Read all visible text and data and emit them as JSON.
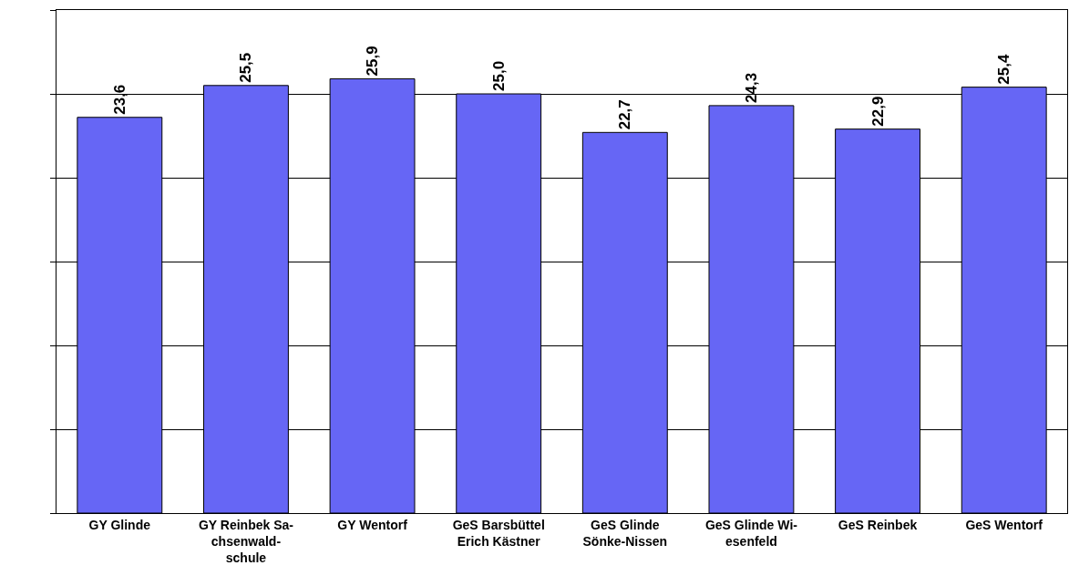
{
  "chart_data": {
    "type": "bar",
    "categories": [
      "GY Glinde",
      "GY Reinbek Sa-\nchsenwald-\nschule",
      "GY Wentorf",
      "GeS Barsbüttel\nErich Kästner",
      "GeS Glinde\nSönke-Nissen",
      "GeS Glinde Wi-\nesenfeld",
      "GeS Reinbek",
      "GeS Wentorf"
    ],
    "values": [
      23.6,
      25.5,
      25.9,
      25.0,
      22.7,
      24.3,
      22.9,
      25.4
    ],
    "value_labels": [
      "23,6",
      "25,5",
      "25,9",
      "25,0",
      "22,7",
      "24,3",
      "22,9",
      "25,4"
    ],
    "color": "#6666f5",
    "ylim": [
      0,
      30
    ],
    "yticks": [
      {
        "value": 0,
        "label": null
      },
      {
        "value": 5,
        "label": null
      },
      {
        "value": 10,
        "label": null
      },
      {
        "value": 15,
        "label": null
      },
      {
        "value": 20,
        "label": null
      },
      {
        "value": 25,
        "label": null
      },
      {
        "value": 30,
        "label": null
      }
    ],
    "tick_labels": "x",
    "grid": "y"
  }
}
